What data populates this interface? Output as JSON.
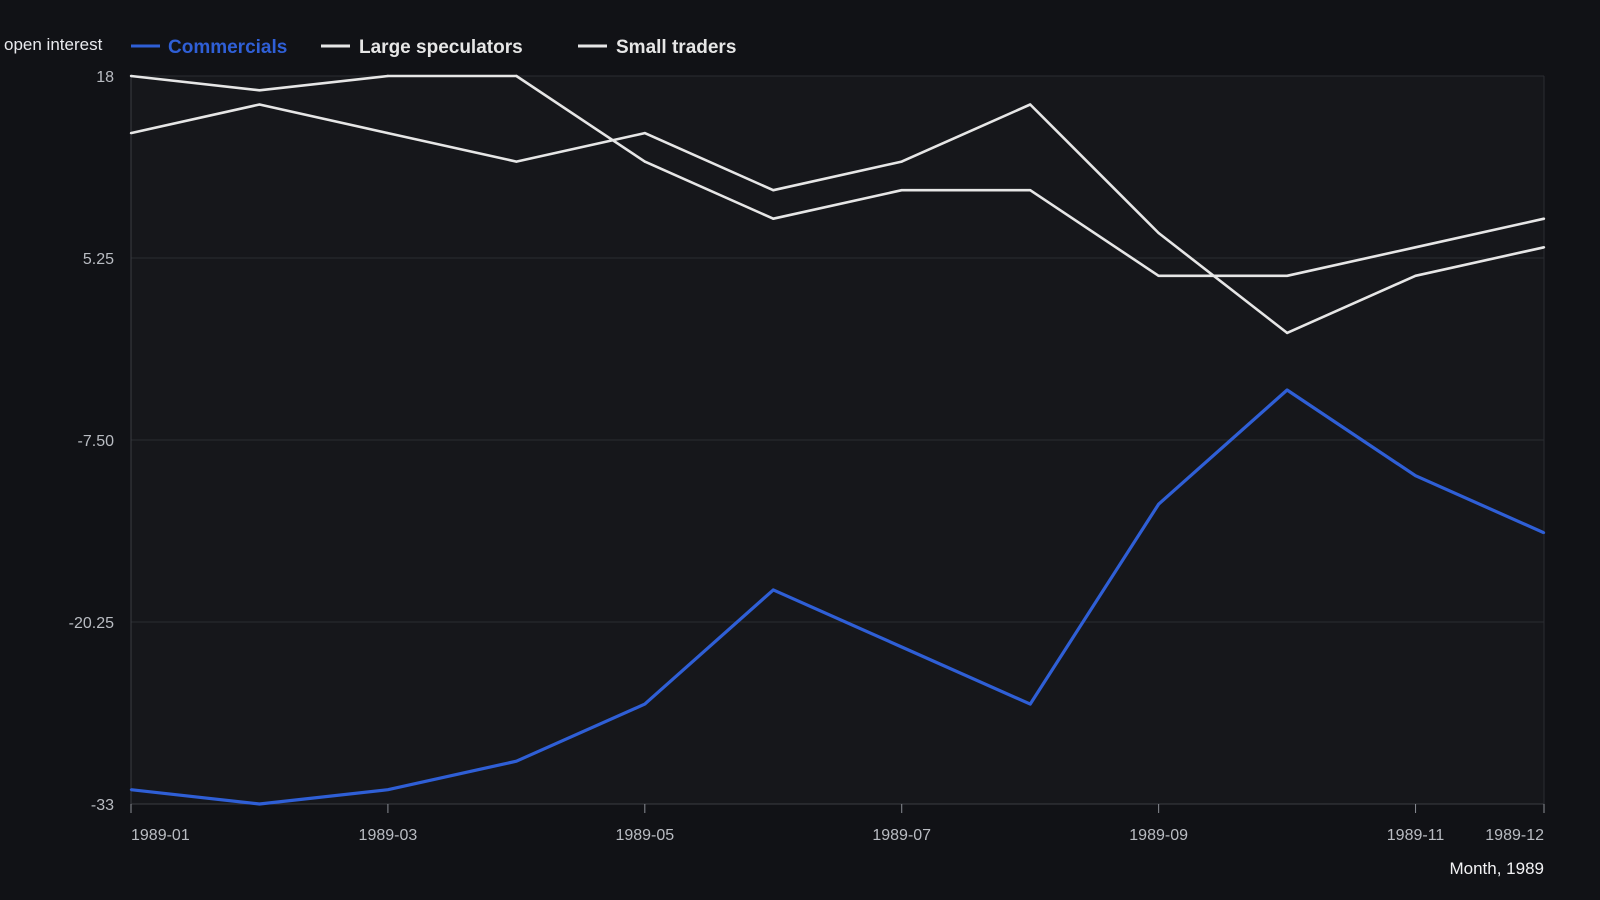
{
  "chart_data": {
    "type": "line",
    "title": "",
    "ylabel": "open interest",
    "xlabel": "Month, 1989",
    "x": [
      "1989-01",
      "1989-02",
      "1989-03",
      "1989-04",
      "1989-05",
      "1989-06",
      "1989-07",
      "1989-08",
      "1989-09",
      "1989-10",
      "1989-11",
      "1989-12"
    ],
    "x_tick_labels": [
      "1989-01",
      "1989-03",
      "1989-05",
      "1989-07",
      "1989-09",
      "1989-11",
      "1989-12"
    ],
    "y_ticks": [
      "18",
      "5.25",
      "-7.50",
      "-20.25",
      "-33"
    ],
    "ylim": [
      -33,
      18
    ],
    "grid": true,
    "legend_position": "top-left",
    "series": [
      {
        "name": "Commercials",
        "color": "#2f5fd6",
        "values": [
          -32,
          -33,
          -32,
          -30,
          -26,
          -18,
          -22,
          -26,
          -12,
          -4,
          -10,
          -14
        ]
      },
      {
        "name": "Large speculators",
        "color": "#e6e6e6",
        "values": [
          14,
          16,
          14,
          12,
          14,
          10,
          12,
          16,
          7,
          0,
          4,
          6
        ]
      },
      {
        "name": "Small traders",
        "color": "#e6e6e6",
        "values": [
          18,
          17,
          18,
          18,
          12,
          8,
          10,
          10,
          4,
          4,
          6,
          8
        ]
      }
    ]
  }
}
